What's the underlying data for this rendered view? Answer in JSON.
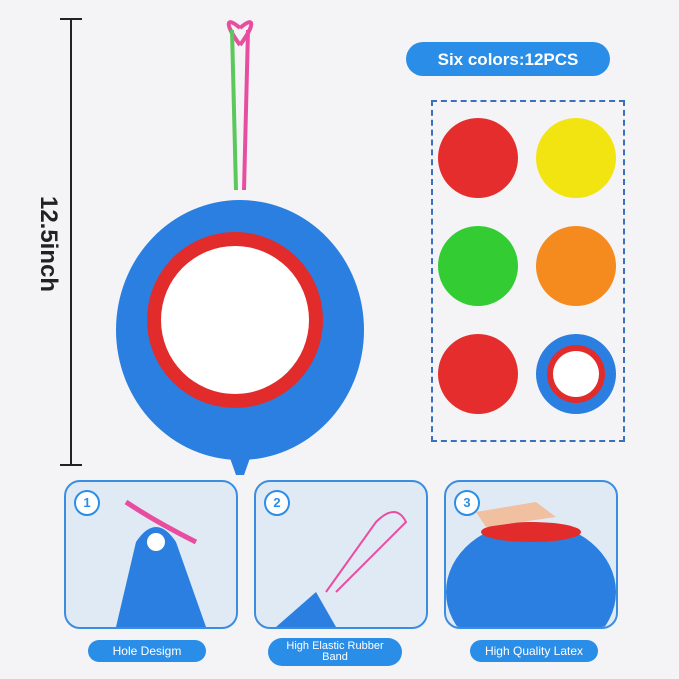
{
  "dimension_label": "12.5inch",
  "colors_badge": "Six colors:12PCS",
  "features": [
    {
      "num": "1",
      "label": "Hole Desigm"
    },
    {
      "num": "2",
      "label": "High Elastic Rubber Band"
    },
    {
      "num": "3",
      "label": "High Quality Latex"
    }
  ],
  "balloon_colors": [
    "#e52d2d",
    "#f2e411",
    "#33cc33",
    "#f58a1e",
    "#e52d2d",
    "#2a7fe0"
  ],
  "accent": "#2a8ee8"
}
